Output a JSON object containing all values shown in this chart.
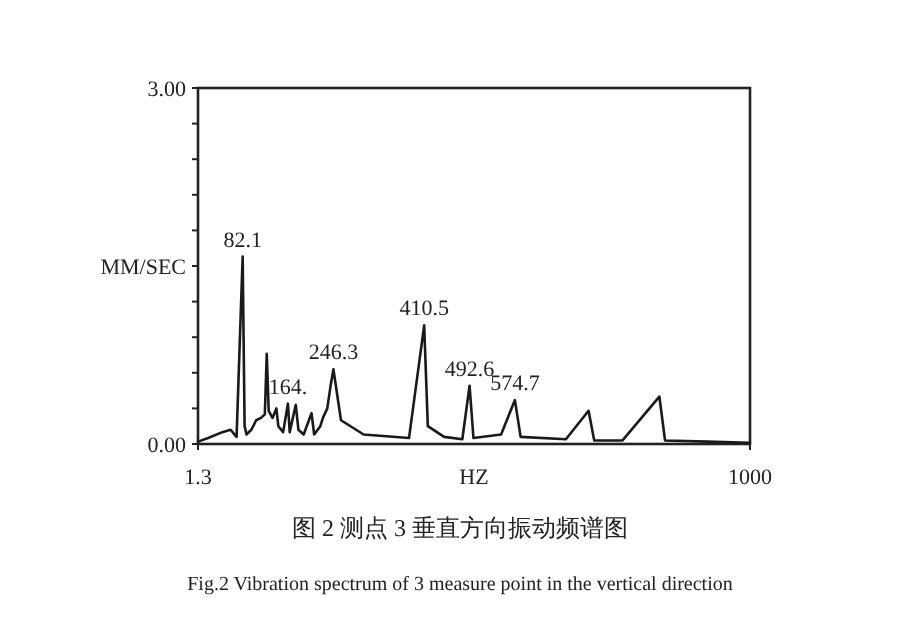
{
  "chart_data": {
    "type": "line",
    "title": "图 2 测点 3 垂直方向振动频谱图",
    "subtitle": "Fig.2 Vibration spectrum of 3 measure point in the vertical direction",
    "xlabel": "HZ",
    "ylabel": "MM/SEC",
    "color": "#1a1a1a",
    "xlim": [
      1.3,
      1000
    ],
    "ylim": [
      0,
      3
    ],
    "xticks": [
      {
        "value": 1.3,
        "label": "1.3"
      },
      {
        "value": 1000,
        "label": "1000"
      }
    ],
    "yticks": [
      {
        "value": 0,
        "label": "0.00"
      },
      {
        "value": 0.3,
        "label": null
      },
      {
        "value": 0.6,
        "label": null
      },
      {
        "value": 0.9,
        "label": null
      },
      {
        "value": 1.2,
        "label": null
      },
      {
        "value": 1.5,
        "label": null
      },
      {
        "value": 1.8,
        "label": null
      },
      {
        "value": 2.1,
        "label": null
      },
      {
        "value": 2.4,
        "label": null
      },
      {
        "value": 2.7,
        "label": null
      },
      {
        "value": 3,
        "label": "3.00"
      }
    ],
    "x": [
      1.3,
      19.7,
      45.4,
      60.1,
      71.1,
      82.1,
      85.6,
      89.1,
      97.8,
      106.5,
      115.2,
      122.2,
      125.7,
      129.2,
      136.1,
      143.1,
      146.6,
      155.3,
      164,
      167.2,
      178.2,
      183,
      192.5,
      206.7,
      211.5,
      222.6,
      227.3,
      235.2,
      241.5,
      246.3,
      260,
      301,
      383.1,
      410.5,
      417.1,
      446.6,
      479.5,
      492.6,
      499.7,
      549.7,
      574.7,
      585,
      666.9,
      707.9,
      718.2,
      769.4,
      836,
      846.3,
      923.1,
      1000
    ],
    "values": [
      0.02,
      0.05,
      0.1,
      0.12,
      0.06,
      1.58,
      0.15,
      0.08,
      0.12,
      0.2,
      0.22,
      0.25,
      0.76,
      0.28,
      0.22,
      0.3,
      0.15,
      0.1,
      0.34,
      0.1,
      0.33,
      0.12,
      0.08,
      0.26,
      0.08,
      0.15,
      0.22,
      0.3,
      0.5,
      0.63,
      0.2,
      0.08,
      0.05,
      1.0,
      0.15,
      0.06,
      0.04,
      0.49,
      0.05,
      0.08,
      0.37,
      0.06,
      0.04,
      0.28,
      0.03,
      0.03,
      0.4,
      0.03,
      0.02,
      0.01
    ],
    "annotations": [
      {
        "text": "82.1",
        "x": 82.1,
        "y": 1.58
      },
      {
        "text": "164.",
        "x": 164,
        "y": 0.34
      },
      {
        "text": "246.3",
        "x": 246.3,
        "y": 0.63
      },
      {
        "text": "410.5",
        "x": 410.5,
        "y": 1.0
      },
      {
        "text": "492.6",
        "x": 492.6,
        "y": 0.49
      },
      {
        "text": "574.7",
        "x": 574.7,
        "y": 0.37
      }
    ]
  }
}
